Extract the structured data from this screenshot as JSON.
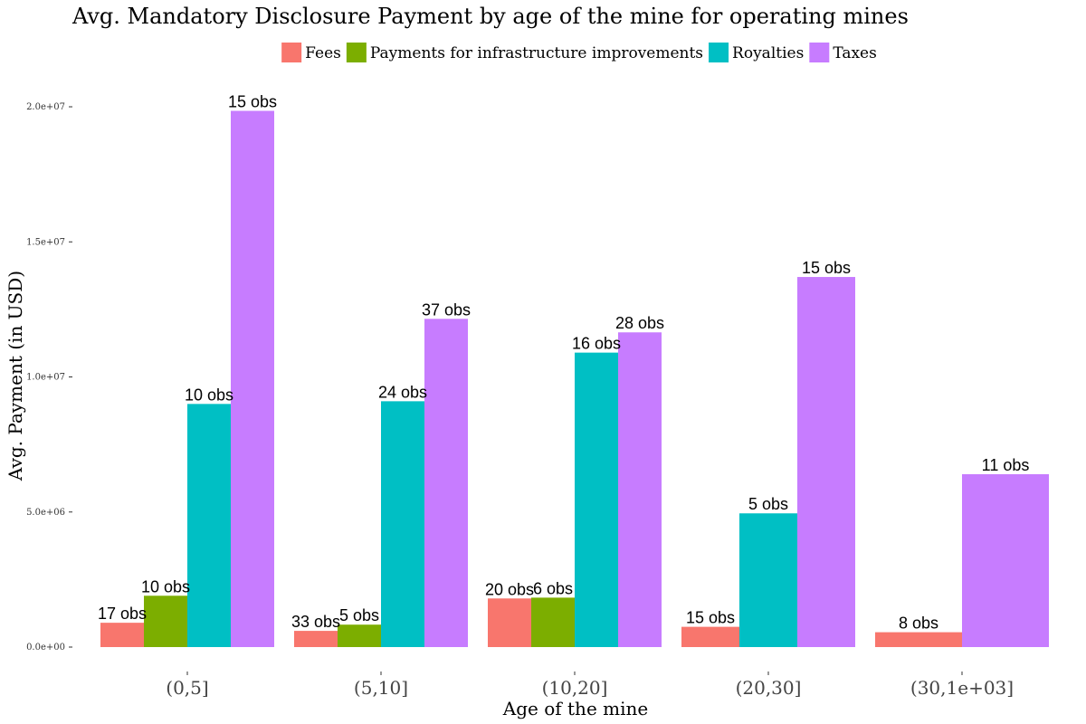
{
  "chart_data": {
    "type": "bar",
    "title": "Avg. Mandatory Disclosure Payment by age of the mine for operating mines",
    "xlabel": "Age of the mine",
    "ylabel": "Avg. Payment (in USD)",
    "ylim": [
      0,
      20000000
    ],
    "yticks": [
      0,
      5000000,
      10000000,
      15000000,
      20000000
    ],
    "ytick_labels": [
      "0.0e+00",
      "5.0e+06",
      "1.0e+07",
      "1.5e+07",
      "2.0e+07"
    ],
    "legend_position": "top",
    "grid": false,
    "categories": [
      "(0,5]",
      "(5,10]",
      "(10,20]",
      "(20,30]",
      "(30,1e+03]"
    ],
    "series": [
      {
        "name": "Fees",
        "color": "#F8766D",
        "values": [
          900000,
          600000,
          1800000,
          750000,
          550000
        ],
        "labels": [
          "17 obs",
          "33 obs",
          "20 obs",
          "15 obs",
          "8 obs"
        ]
      },
      {
        "name": "Payments for infrastructure improvements",
        "color": "#7CAE00",
        "values": [
          1900000,
          830000,
          1830000,
          null,
          null
        ],
        "labels": [
          "10 obs",
          "5 obs",
          "6 obs",
          null,
          null
        ]
      },
      {
        "name": "Royalties",
        "color": "#00BFC4",
        "values": [
          9000000,
          9100000,
          10900000,
          4950000,
          null
        ],
        "labels": [
          "10 obs",
          "24 obs",
          "16 obs",
          "5 obs",
          null
        ]
      },
      {
        "name": "Taxes",
        "color": "#C77CFF",
        "values": [
          19850000,
          12150000,
          11650000,
          13700000,
          6400000
        ],
        "labels": [
          "15 obs",
          "37 obs",
          "28 obs",
          "15 obs",
          "11 obs"
        ]
      }
    ]
  }
}
